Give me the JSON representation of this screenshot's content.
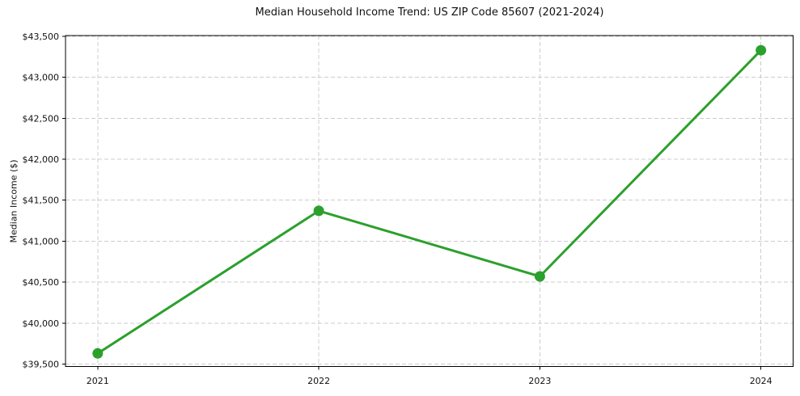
{
  "chart_data": {
    "type": "line",
    "title": "Median Household Income Trend: US ZIP Code 85607 (2021-2024)",
    "xlabel": "",
    "ylabel": "Median Income ($)",
    "series_name": "Median Household Income",
    "categories": [
      "2021",
      "2022",
      "2023",
      "2024"
    ],
    "values": [
      39630,
      41370,
      40570,
      43330
    ],
    "ylim": [
      39470,
      43510
    ],
    "yticks": [
      39500,
      40000,
      40500,
      41000,
      41500,
      42000,
      42500,
      43000,
      43500
    ],
    "ytick_labels": [
      "$39,500",
      "$40,000",
      "$40,500",
      "$41,000",
      "$41,500",
      "$42,000",
      "$42,500",
      "$43,000",
      "$43,500"
    ],
    "grid": true,
    "grid_linestyle": "dashed",
    "legend_position": "none",
    "line_color": "#2ca02c",
    "marker": "circle",
    "marker_color": "#2ca02c",
    "grid_color": "#cccccc",
    "axis_color": "#000000",
    "background_color": "#ffffff"
  }
}
